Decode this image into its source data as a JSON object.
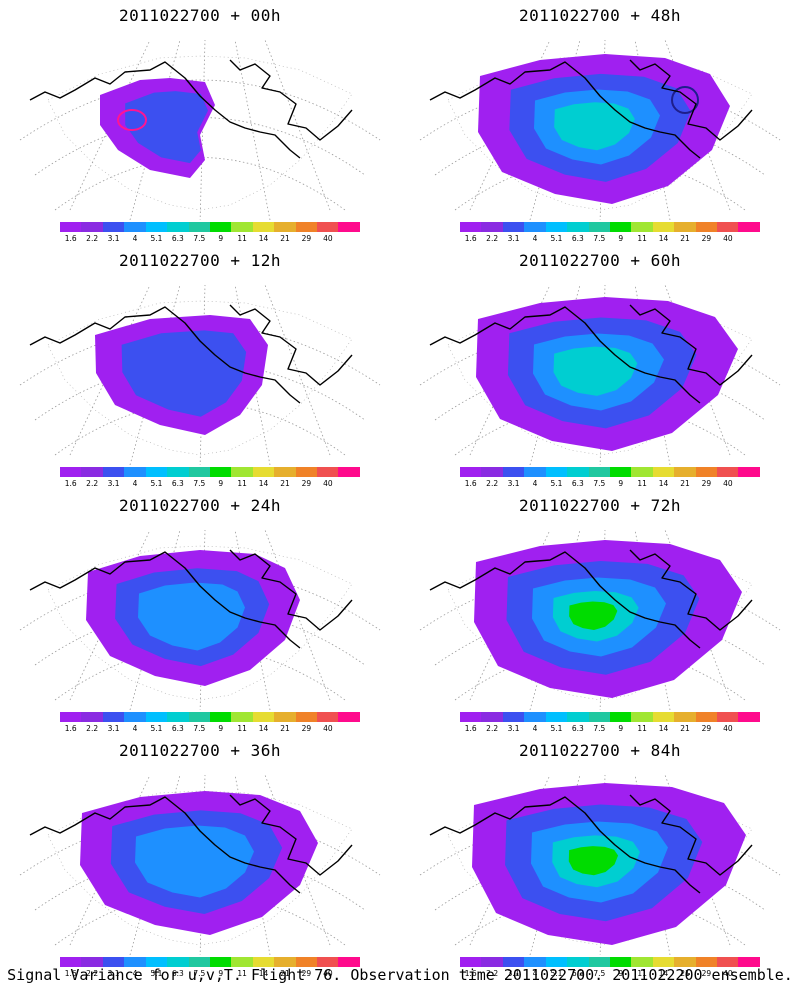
{
  "caption": "Signal Variance for u,v,T. Flight 76. Observation time 2011022700. 2011022200 ensemble.",
  "panels": [
    {
      "title": "2011022700 + 00h",
      "level": 0
    },
    {
      "title": "2011022700 + 48h",
      "level": 4
    },
    {
      "title": "2011022700 + 12h",
      "level": 1
    },
    {
      "title": "2011022700 + 60h",
      "level": 5
    },
    {
      "title": "2011022700 + 24h",
      "level": 2
    },
    {
      "title": "2011022700 + 72h",
      "level": 6
    },
    {
      "title": "2011022700 + 36h",
      "level": 3
    },
    {
      "title": "2011022700 + 84h",
      "level": 7
    }
  ],
  "colorbar": {
    "labels": [
      "1.6",
      "2.2",
      "3.1",
      "4",
      "5.1",
      "6.3",
      "7.5",
      "9",
      "11",
      "14",
      "21",
      "29",
      "40"
    ],
    "colors": [
      "#a020f0",
      "#8a2be2",
      "#3c50f0",
      "#1e90ff",
      "#00bfff",
      "#00ced1",
      "#20c8a0",
      "#00dc00",
      "#a0e632",
      "#e6dc32",
      "#e6af2d",
      "#f08228",
      "#f05050",
      "#ff0a8c"
    ]
  }
}
